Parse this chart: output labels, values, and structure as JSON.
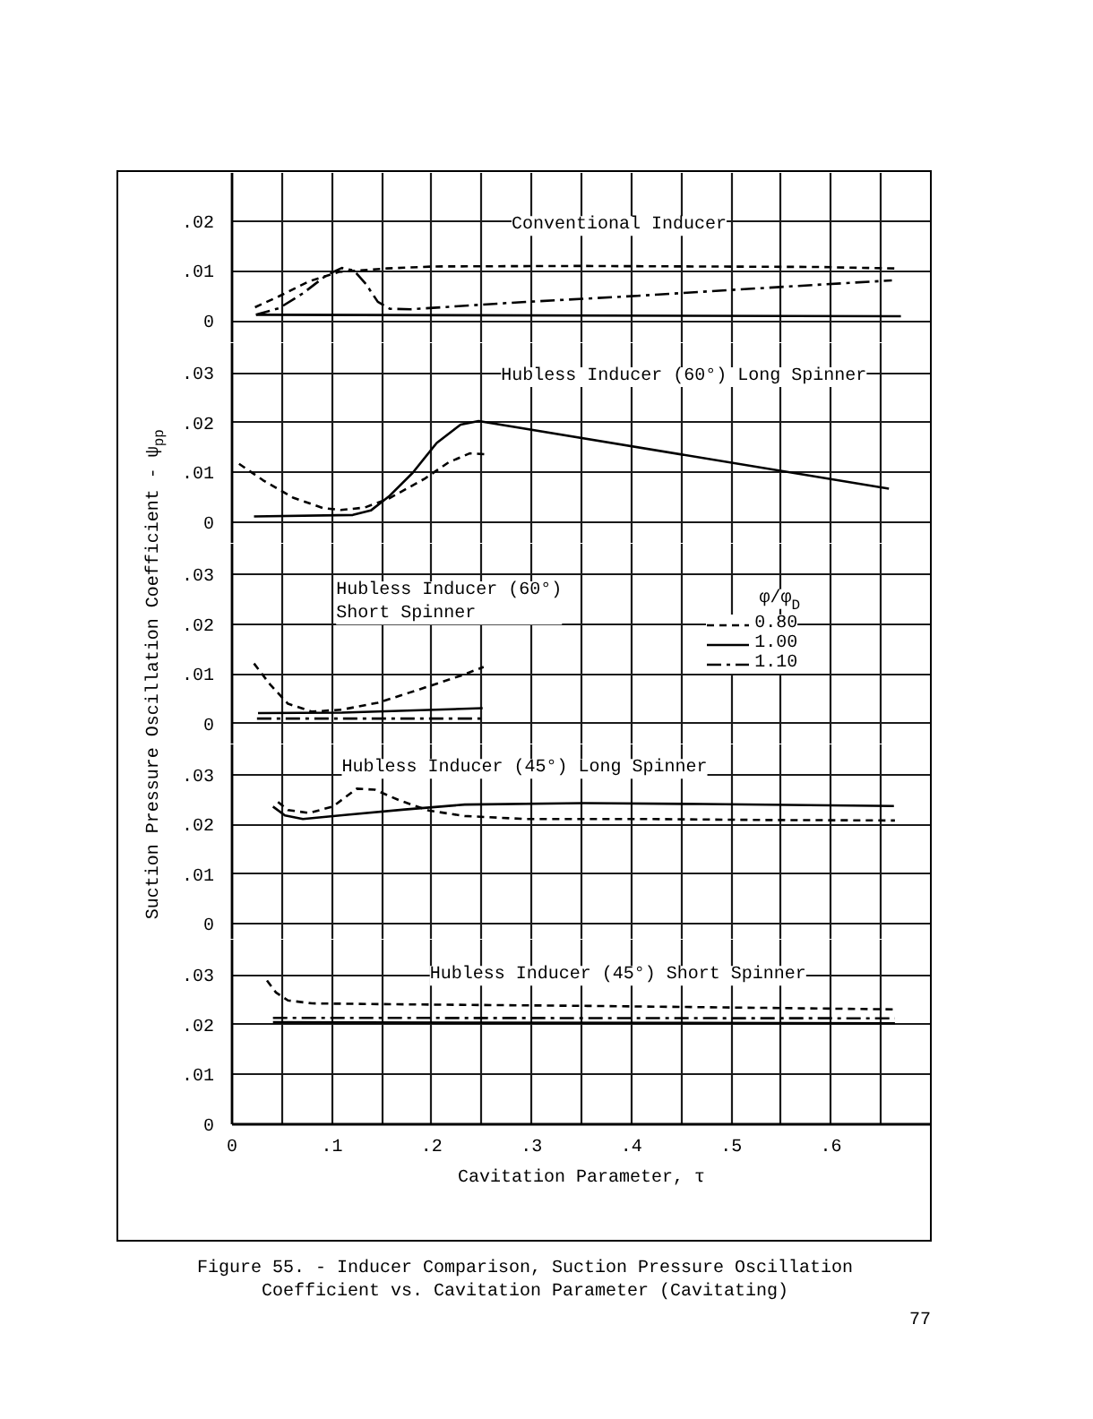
{
  "chart_data": [
    {
      "type": "line",
      "title": "Conventional Inducer",
      "xlim": [
        0,
        0.7
      ],
      "xticks": [
        {
          "value": 0.05,
          "label": null
        },
        {
          "value": 0.1,
          "label": null
        },
        {
          "value": 0.15,
          "label": null
        },
        {
          "value": 0.2,
          "label": null
        },
        {
          "value": 0.25,
          "label": null
        },
        {
          "value": 0.3,
          "label": null
        },
        {
          "value": 0.35,
          "label": null
        },
        {
          "value": 0.4,
          "label": null
        },
        {
          "value": 0.45,
          "label": null
        },
        {
          "value": 0.5,
          "label": null
        },
        {
          "value": 0.55,
          "label": null
        },
        {
          "value": 0.6,
          "label": null
        },
        {
          "value": 0.65,
          "label": null
        }
      ],
      "ylim": [
        -0.0045,
        0.0297
      ],
      "yticks": [
        0,
        {
          "value": 0.01,
          "label": ".01"
        },
        {
          "value": 0.02,
          "label": ".02"
        }
      ],
      "tick_labels": "y",
      "grid": true,
      "series": [
        {
          "color": "#000000",
          "line_style": "dashed",
          "x": [
            0.023,
            0.047,
            0.077,
            0.107,
            0.155,
            0.203,
            0.347,
            0.466,
            0.586,
            0.664
          ],
          "values": [
            0.0027,
            0.0049,
            0.0079,
            0.0098,
            0.0105,
            0.0109,
            0.011,
            0.0109,
            0.0108,
            0.0105
          ]
        },
        {
          "color": "#000000",
          "line_style": "solid",
          "x": [
            0.024,
            0.67
          ],
          "values": [
            0.0012,
            0.0009
          ]
        },
        {
          "color": "#000000",
          "line_style": "dashdot",
          "x": [
            0.024,
            0.047,
            0.071,
            0.095,
            0.11,
            0.122,
            0.134,
            0.146,
            0.158,
            0.179,
            0.287,
            0.406,
            0.526,
            0.661
          ],
          "values": [
            0.0012,
            0.0025,
            0.0055,
            0.0092,
            0.0106,
            0.0101,
            0.0074,
            0.0038,
            0.0024,
            0.0023,
            0.0037,
            0.005,
            0.0065,
            0.0081
          ]
        }
      ]
    },
    {
      "type": "line",
      "title": "Hubless Inducer (60°) Long Spinner",
      "xlim": [
        0,
        0.7
      ],
      "xticks": [
        {
          "value": 0.05,
          "label": null
        },
        {
          "value": 0.1,
          "label": null
        },
        {
          "value": 0.15,
          "label": null
        },
        {
          "value": 0.2,
          "label": null
        },
        {
          "value": 0.25,
          "label": null
        },
        {
          "value": 0.3,
          "label": null
        },
        {
          "value": 0.35,
          "label": null
        },
        {
          "value": 0.4,
          "label": null
        },
        {
          "value": 0.45,
          "label": null
        },
        {
          "value": 0.5,
          "label": null
        },
        {
          "value": 0.55,
          "label": null
        },
        {
          "value": 0.6,
          "label": null
        },
        {
          "value": 0.65,
          "label": null
        }
      ],
      "ylim": [
        -0.0044,
        0.036
      ],
      "yticks": [
        0,
        {
          "value": 0.01,
          "label": ".01"
        },
        {
          "value": 0.02,
          "label": ".02"
        },
        {
          "value": 0.03,
          "label": ".03"
        }
      ],
      "tick_labels": "y",
      "grid": true,
      "series": [
        {
          "color": "#000000",
          "line_style": "dashed",
          "x": [
            0.007,
            0.031,
            0.061,
            0.091,
            0.109,
            0.133,
            0.157,
            0.193,
            0.217,
            0.238,
            0.256
          ],
          "values": [
            0.0117,
            0.0084,
            0.0049,
            0.0028,
            0.0024,
            0.0029,
            0.0047,
            0.0087,
            0.012,
            0.0138,
            0.0136
          ]
        },
        {
          "color": "#000000",
          "line_style": "solid",
          "x": [
            0.022,
            0.121,
            0.139,
            0.157,
            0.181,
            0.205,
            0.229,
            0.247,
            0.658
          ],
          "values": [
            0.0011,
            0.0014,
            0.0023,
            0.0051,
            0.0099,
            0.0159,
            0.0196,
            0.0203,
            0.0067
          ]
        }
      ]
    },
    {
      "type": "line",
      "title": "Hubless Inducer (60°) Short Spinner",
      "ylabel": "Suction Pressure Oscillation Coefficient - ψ$_{pp}$",
      "legend_title": "φ/φ$_{D}$",
      "legend": "right",
      "xlim": [
        0,
        0.7
      ],
      "xticks": [
        {
          "value": 0.05,
          "label": null
        },
        {
          "value": 0.1,
          "label": null
        },
        {
          "value": 0.15,
          "label": null
        },
        {
          "value": 0.2,
          "label": null
        },
        {
          "value": 0.25,
          "label": null
        },
        {
          "value": 0.3,
          "label": null
        },
        {
          "value": 0.35,
          "label": null
        },
        {
          "value": 0.4,
          "label": null
        },
        {
          "value": 0.45,
          "label": null
        },
        {
          "value": 0.5,
          "label": null
        },
        {
          "value": 0.55,
          "label": null
        },
        {
          "value": 0.6,
          "label": null
        },
        {
          "value": 0.65,
          "label": null
        }
      ],
      "ylim": [
        -0.0042,
        0.0362
      ],
      "yticks": [
        0,
        {
          "value": 0.01,
          "label": ".01"
        },
        {
          "value": 0.02,
          "label": ".02"
        },
        {
          "value": 0.03,
          "label": ".03"
        }
      ],
      "tick_labels": "y",
      "grid": true,
      "series": [
        {
          "name": "0.80",
          "color": "#000000",
          "line_style": "dashed",
          "x": [
            0.022,
            0.038,
            0.056,
            0.08,
            0.11,
            0.146,
            0.188,
            0.23,
            0.252
          ],
          "values": [
            0.0121,
            0.0079,
            0.004,
            0.0024,
            0.0028,
            0.0042,
            0.0069,
            0.0097,
            0.0114
          ]
        },
        {
          "name": "1.00",
          "color": "#000000",
          "line_style": "solid",
          "x": [
            0.026,
            0.11,
            0.251
          ],
          "values": [
            0.0021,
            0.0022,
            0.0031
          ]
        },
        {
          "name": "1.10",
          "color": "#000000",
          "line_style": "dashdot",
          "x": [
            0.025,
            0.251
          ],
          "values": [
            0.001,
            0.001
          ]
        }
      ]
    },
    {
      "type": "line",
      "title": "Hubless Inducer (45°) Long Spinner",
      "xlim": [
        0,
        0.7
      ],
      "xticks": [
        {
          "value": 0.05,
          "label": null
        },
        {
          "value": 0.1,
          "label": null
        },
        {
          "value": 0.15,
          "label": null
        },
        {
          "value": 0.2,
          "label": null
        },
        {
          "value": 0.25,
          "label": null
        },
        {
          "value": 0.3,
          "label": null
        },
        {
          "value": 0.35,
          "label": null
        },
        {
          "value": 0.4,
          "label": null
        },
        {
          "value": 0.45,
          "label": null
        },
        {
          "value": 0.5,
          "label": null
        },
        {
          "value": 0.55,
          "label": null
        },
        {
          "value": 0.6,
          "label": null
        },
        {
          "value": 0.65,
          "label": null
        }
      ],
      "ylim": [
        -0.0032,
        0.0361
      ],
      "yticks": [
        0,
        {
          "value": 0.01,
          "label": ".01"
        },
        {
          "value": 0.02,
          "label": ".02"
        },
        {
          "value": 0.03,
          "label": ".03"
        }
      ],
      "tick_labels": "y",
      "grid": true,
      "series": [
        {
          "color": "#000000",
          "line_style": "dashed",
          "x": [
            0.046,
            0.056,
            0.077,
            0.101,
            0.125,
            0.143,
            0.167,
            0.197,
            0.233,
            0.293,
            0.412,
            0.532,
            0.664
          ],
          "values": [
            0.0245,
            0.0229,
            0.0223,
            0.0236,
            0.0272,
            0.027,
            0.0249,
            0.0228,
            0.0217,
            0.0211,
            0.0211,
            0.0209,
            0.0208
          ]
        },
        {
          "color": "#000000",
          "line_style": "solid",
          "x": [
            0.041,
            0.053,
            0.071,
            0.113,
            0.173,
            0.233,
            0.353,
            0.472,
            0.663
          ],
          "values": [
            0.0236,
            0.0218,
            0.0211,
            0.0219,
            0.023,
            0.024,
            0.0243,
            0.0241,
            0.0237
          ]
        }
      ]
    },
    {
      "type": "line",
      "title": "Hubless Inducer (45°) Short Spinner",
      "xlabel": "Cavitation Parameter, τ",
      "annotations": [
        "Figure 55. - Inducer Comparison, Suction Pressure Oscillation Coefficient vs. Cavitation Parameter (Cavitating)",
        "77"
      ],
      "xlim": [
        0,
        0.7
      ],
      "xticks": [
        0,
        {
          "value": 0.05,
          "label": null
        },
        {
          "value": 0.1,
          "label": ".1"
        },
        {
          "value": 0.15,
          "label": null
        },
        {
          "value": 0.2,
          "label": ".2"
        },
        {
          "value": 0.25,
          "label": null
        },
        {
          "value": 0.3,
          "label": ".3"
        },
        {
          "value": 0.35,
          "label": null
        },
        {
          "value": 0.4,
          "label": ".4"
        },
        {
          "value": 0.45,
          "label": null
        },
        {
          "value": 0.5,
          "label": ".5"
        },
        {
          "value": 0.55,
          "label": null
        },
        {
          "value": 0.6,
          "label": ".6"
        },
        {
          "value": 0.65,
          "label": null
        }
      ],
      "ylim": [
        0,
        0.0371
      ],
      "yticks": [
        0,
        {
          "value": 0.01,
          "label": ".01"
        },
        {
          "value": 0.02,
          "label": ".02"
        },
        {
          "value": 0.03,
          "label": ".03"
        }
      ],
      "grid": true,
      "series": [
        {
          "color": "#000000",
          "line_style": "dashed",
          "x": [
            0.035,
            0.044,
            0.056,
            0.08,
            0.176,
            0.356,
            0.535,
            0.662
          ],
          "values": [
            0.0289,
            0.0265,
            0.0249,
            0.0243,
            0.0241,
            0.0238,
            0.0234,
            0.0231
          ]
        },
        {
          "color": "#000000",
          "line_style": "solid",
          "x": [
            0.041,
            0.664
          ],
          "values": [
            0.0205,
            0.0203
          ]
        },
        {
          "color": "#000000",
          "line_style": "dashdot",
          "x": [
            0.041,
            0.664
          ],
          "values": [
            0.0214,
            0.0213
          ]
        }
      ]
    }
  ]
}
